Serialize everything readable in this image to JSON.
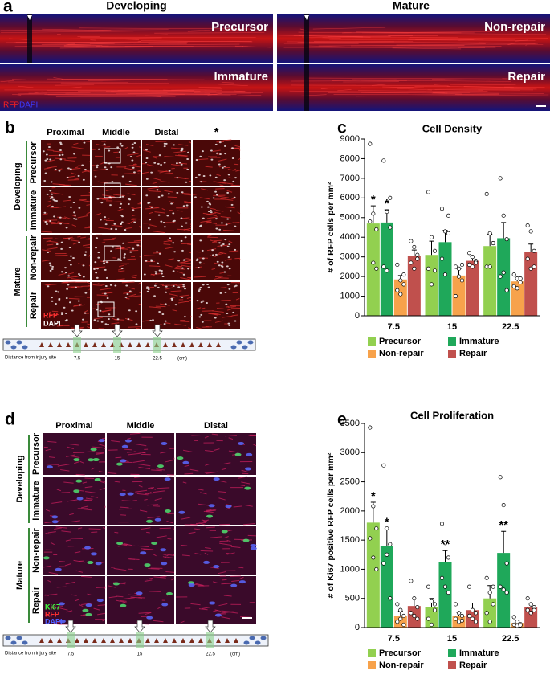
{
  "panel_labels": [
    "a",
    "b",
    "c",
    "d",
    "e"
  ],
  "overview": {
    "groups": [
      "Developing",
      "Mature"
    ],
    "images": [
      "Precursor",
      "Non-repair",
      "Immature",
      "Repair"
    ],
    "stains": [
      "RFP",
      "DAPI"
    ]
  },
  "grid_b": {
    "columns": [
      "Proximal",
      "Middle",
      "Distal",
      "*"
    ],
    "groups": [
      "Developing",
      "Mature"
    ],
    "rows": [
      "Precursor",
      "Immature",
      "Non-repair",
      "Repair"
    ],
    "stains": [
      "RFP",
      "DAPI"
    ]
  },
  "grid_d": {
    "columns": [
      "Proximal",
      "Middle",
      "Distal"
    ],
    "groups": [
      "Developing",
      "Mature"
    ],
    "rows": [
      "Precursor",
      "Immature",
      "Non-repair",
      "Repair"
    ],
    "stains": [
      "Ki67",
      "RFP",
      "DAPI"
    ]
  },
  "schematic": {
    "label": "Distance from injury site",
    "positions": [
      "7.5",
      "15",
      "22.5"
    ],
    "unit": "(cm)"
  },
  "chart_data": [
    {
      "type": "bar",
      "title": "Cell Density",
      "y_label": "# of RFP cells per mm²",
      "categories": [
        "7.5",
        "15",
        "22.5"
      ],
      "ylim": [
        0,
        9000
      ],
      "yticks": [
        0,
        1000,
        2000,
        3000,
        4000,
        5000,
        6000,
        7000,
        8000,
        9000
      ],
      "series": [
        {
          "name": "Precursor",
          "color": "#92d050",
          "values": [
            4700,
            3100,
            3550
          ],
          "errors": [
            900,
            700,
            600
          ],
          "significance": [
            "*",
            null,
            null
          ],
          "points": [
            [
              8750,
              5200,
              4400,
              4800,
              2700,
              2400
            ],
            [
              6300,
              4000,
              3300,
              2400,
              1600,
              2300
            ],
            [
              6200,
              4200,
              3700,
              2500,
              2500,
              3700
            ]
          ]
        },
        {
          "name": "Immature",
          "color": "#1fa85a",
          "values": [
            4750,
            3750,
            3950
          ],
          "errors": [
            650,
            600,
            800
          ],
          "significance": [
            "*",
            null,
            null
          ],
          "points": [
            [
              7900,
              5300,
              4500,
              2500,
              2300,
              6000
            ],
            [
              5450,
              4300,
              4200,
              2900,
              2100,
              5100
            ],
            [
              7000,
              5100,
              3900,
              2000,
              2200,
              1300
            ]
          ]
        },
        {
          "name": "Non-repair",
          "color": "#f7a24b",
          "values": [
            1850,
            2050,
            1750
          ],
          "errors": [
            200,
            350,
            150
          ],
          "significance": [
            null,
            null,
            null
          ],
          "points": [
            [
              2600,
              1800,
              1600,
              1300,
              1100,
              2100
            ],
            [
              2500,
              2400,
              1800,
              1000,
              2000,
              2600
            ],
            [
              2100,
              1900,
              1700,
              1500,
              1400,
              1900
            ]
          ]
        },
        {
          "name": "Repair",
          "color": "#c0504d",
          "values": [
            3050,
            2800,
            3250
          ],
          "errors": [
            300,
            200,
            400
          ],
          "significance": [
            null,
            null,
            null
          ],
          "points": [
            [
              3800,
              3500,
              2900,
              2700,
              2400,
              3100
            ],
            [
              3200,
              3000,
              2800,
              2600,
              2500,
              2700
            ],
            [
              4600,
              4300,
              3300,
              2900,
              2400,
              2500
            ]
          ]
        }
      ]
    },
    {
      "type": "bar",
      "title": "Cell Proliferation",
      "y_label": "# of Ki67 positive RFP cells per mm²",
      "categories": [
        "7.5",
        "15",
        "22.5"
      ],
      "ylim": [
        0,
        3500
      ],
      "yticks": [
        0,
        500,
        1000,
        1500,
        2000,
        2500,
        3000,
        3500
      ],
      "series": [
        {
          "name": "Precursor",
          "color": "#92d050",
          "values": [
            1800,
            350,
            500
          ],
          "errors": [
            350,
            150,
            220
          ],
          "significance": [
            "*",
            null,
            null
          ],
          "points": [
            [
              3430,
              2080,
              1700,
              1530,
              1200,
              1000
            ],
            [
              700,
              450,
              300,
              150,
              50,
              400
            ],
            [
              850,
              600,
              400,
              250,
              100,
              700
            ]
          ]
        },
        {
          "name": "Immature",
          "color": "#1fa85a",
          "values": [
            1400,
            1120,
            1280
          ],
          "errors": [
            300,
            200,
            370
          ],
          "significance": [
            "*",
            "**",
            "**"
          ],
          "points": [
            [
              2780,
              1700,
              1430,
              1100,
              1250,
              500
            ],
            [
              1780,
              1450,
              1200,
              850,
              700,
              600
            ],
            [
              2580,
              2100,
              1100,
              700,
              650,
              600
            ]
          ]
        },
        {
          "name": "Non-repair",
          "color": "#f7a24b",
          "values": [
            200,
            200,
            80
          ],
          "errors": [
            80,
            60,
            30
          ],
          "significance": [
            null,
            null,
            null
          ],
          "points": [
            [
              400,
              300,
              200,
              100,
              150,
              50
            ],
            [
              400,
              250,
              200,
              150,
              100,
              120
            ],
            [
              180,
              100,
              60,
              50,
              30,
              40
            ]
          ]
        },
        {
          "name": "Repair",
          "color": "#c0504d",
          "values": [
            370,
            300,
            350
          ],
          "errors": [
            120,
            120,
            70
          ],
          "significance": [
            null,
            null,
            null
          ],
          "points": [
            [
              800,
              500,
              350,
              250,
              200,
              150
            ],
            [
              700,
              300,
              250,
              200,
              150,
              100
            ],
            [
              500,
              400,
              350,
              300,
              250,
              300
            ]
          ]
        }
      ]
    }
  ]
}
